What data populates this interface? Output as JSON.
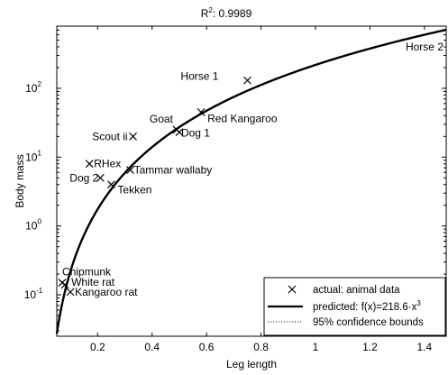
{
  "chart_data": {
    "type": "scatter",
    "title": "R",
    "title_sup": "2",
    "title_value": ": 0.9989",
    "xlabel": "Leg length",
    "ylabel": "Body mass",
    "xlim": [
      0.05,
      1.48
    ],
    "ylim": [
      0.025,
      800
    ],
    "yscale": "log",
    "grid": false,
    "legend_position": "bottom-right",
    "xticks": [
      0.2,
      0.4,
      0.6,
      0.8,
      1,
      1.2,
      1.4
    ],
    "xtick_labels": [
      "0.2",
      "0.4",
      "0.6",
      "0.8",
      "1",
      "1.2",
      "1.4"
    ],
    "yticks": [
      0.1,
      1,
      10,
      100
    ],
    "ytick_labels": [
      {
        "base": "10",
        "exp": "-1"
      },
      {
        "base": "10",
        "exp": "0"
      },
      {
        "base": "10",
        "exp": "1"
      },
      {
        "base": "10",
        "exp": "2"
      }
    ],
    "series": [
      {
        "name": "actual: animal data",
        "marker": "x",
        "points": [
          {
            "label": "Horse 1",
            "x": 0.75,
            "y": 130
          },
          {
            "label": "Red Kangaroo",
            "x": 0.58,
            "y": 45
          },
          {
            "label": "Goat",
            "x": 0.49,
            "y": 25
          },
          {
            "label": "Dog 1",
            "x": 0.5,
            "y": 23
          },
          {
            "label": "Scout ii",
            "x": 0.33,
            "y": 20
          },
          {
            "label": "RHex",
            "x": 0.17,
            "y": 8
          },
          {
            "label": "Tammar wallaby",
            "x": 0.32,
            "y": 6.5
          },
          {
            "label": "Dog 2",
            "x": 0.21,
            "y": 5
          },
          {
            "label": "Tekken",
            "x": 0.25,
            "y": 4
          },
          {
            "label": "Chipmunk",
            "x": 0.07,
            "y": 0.15
          },
          {
            "label": "White rat",
            "x": 0.08,
            "y": 0.14
          },
          {
            "label": "Kangaroo rat",
            "x": 0.1,
            "y": 0.11
          }
        ]
      },
      {
        "name": "predicted: f(x)=218.6·x",
        "name_sup": "3",
        "type": "line",
        "coefficient": 218.6,
        "exponent": 3
      },
      {
        "name": "95% confidence bounds",
        "type": "line",
        "style": "dotted"
      }
    ],
    "annotations": [
      {
        "text": "Horse 2",
        "x": 1.47,
        "y": 500
      }
    ]
  }
}
